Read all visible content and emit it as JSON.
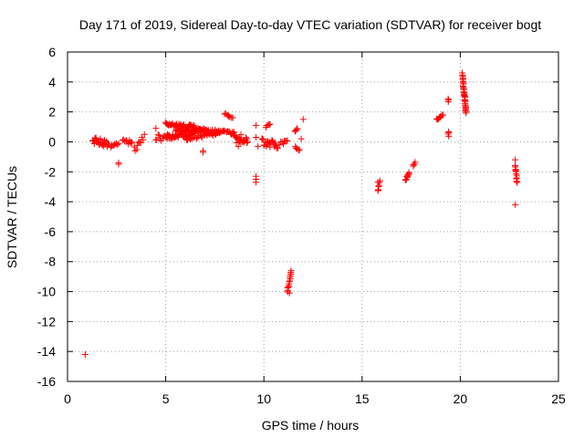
{
  "colors": {
    "points": "#ff0000",
    "frame": "#000000",
    "grid": "#a0a0a0"
  },
  "chart_data": {
    "type": "scatter",
    "title": "Day 171 of 2019, Sidereal Day-to-day VTEC variation (SDTVAR) for receiver bogt",
    "xlabel": "GPS time / hours",
    "ylabel": "SDTVAR / TECUs",
    "xlim": [
      0,
      25
    ],
    "ylim": [
      -16,
      6
    ],
    "xticks": [
      0,
      5,
      10,
      15,
      20,
      25
    ],
    "yticks": [
      -16,
      -14,
      -12,
      -10,
      -8,
      -6,
      -4,
      -2,
      0,
      2,
      4,
      6
    ],
    "grid": true,
    "marker": "plus",
    "series": [
      {
        "name": "SDTVAR",
        "segments": [
          {
            "x0": 1.3,
            "x1": 2.1,
            "y0": 0.1,
            "y1": -0.1,
            "n": 30,
            "jitter": 0.25
          },
          {
            "x0": 2.2,
            "x1": 2.6,
            "y0": -0.3,
            "y1": -0.1,
            "n": 8,
            "jitter": 0.15
          },
          {
            "x0": 2.8,
            "x1": 3.3,
            "y0": 0.1,
            "y1": -0.1,
            "n": 10,
            "jitter": 0.15
          },
          {
            "x0": 3.4,
            "x1": 3.9,
            "y0": -0.5,
            "y1": 0.3,
            "n": 10,
            "jitter": 0.2
          },
          {
            "x0": 4.5,
            "x1": 5.2,
            "y0": 0.2,
            "y1": 0.5,
            "n": 14,
            "jitter": 0.25
          },
          {
            "x0": 5.0,
            "x1": 6.5,
            "y0": 1.2,
            "y1": 1.0,
            "n": 40,
            "jitter": 0.12
          },
          {
            "x0": 5.0,
            "x1": 6.5,
            "y0": 0.3,
            "y1": 0.6,
            "n": 40,
            "jitter": 0.15
          },
          {
            "x0": 5.5,
            "x1": 7.0,
            "y0": 0.8,
            "y1": 0.7,
            "n": 30,
            "jitter": 0.12
          },
          {
            "x0": 6.5,
            "x1": 8.5,
            "y0": 0.8,
            "y1": 0.6,
            "n": 40,
            "jitter": 0.12
          },
          {
            "x0": 6.0,
            "x1": 7.8,
            "y0": 0.2,
            "y1": 0.6,
            "n": 30,
            "jitter": 0.12
          },
          {
            "x0": 8.5,
            "x1": 9.2,
            "y0": 0.5,
            "y1": 0.1,
            "n": 18,
            "jitter": 0.3
          },
          {
            "x0": 8.6,
            "x1": 9.0,
            "y0": -0.2,
            "y1": 0.0,
            "n": 6,
            "jitter": 0.15
          },
          {
            "x0": 9.9,
            "x1": 10.7,
            "y0": 0.0,
            "y1": -0.2,
            "n": 25,
            "jitter": 0.25
          },
          {
            "x0": 10.8,
            "x1": 11.2,
            "y0": -0.1,
            "y1": 0.0,
            "n": 8,
            "jitter": 0.15
          },
          {
            "x0": 11.2,
            "x1": 11.4,
            "y0": -10.0,
            "y1": -8.6,
            "n": 14,
            "jitter": 0.05
          },
          {
            "x0": 11.6,
            "x1": 11.8,
            "y0": -0.4,
            "y1": -0.6,
            "n": 6,
            "jitter": 0.1
          },
          {
            "x0": 11.6,
            "x1": 11.7,
            "y0": 0.7,
            "y1": 0.9,
            "n": 5,
            "jitter": 0.05
          },
          {
            "x0": 8.0,
            "x1": 8.4,
            "y0": 1.9,
            "y1": 1.6,
            "n": 8,
            "jitter": 0.05
          },
          {
            "x0": 10.1,
            "x1": 10.3,
            "y0": 1.0,
            "y1": 1.2,
            "n": 5,
            "jitter": 0.05
          },
          {
            "x0": 15.8,
            "x1": 15.9,
            "y0": -3.3,
            "y1": -2.6,
            "n": 6,
            "jitter": 0.05
          },
          {
            "x0": 17.2,
            "x1": 17.4,
            "y0": -2.6,
            "y1": -2.0,
            "n": 10,
            "jitter": 0.08
          },
          {
            "x0": 17.6,
            "x1": 17.7,
            "y0": -1.6,
            "y1": -1.4,
            "n": 4,
            "jitter": 0.05
          },
          {
            "x0": 18.8,
            "x1": 19.1,
            "y0": 1.5,
            "y1": 1.8,
            "n": 8,
            "jitter": 0.08
          },
          {
            "x0": 19.4,
            "x1": 19.4,
            "y0": 0.4,
            "y1": 0.7,
            "n": 4,
            "jitter": 0.03
          },
          {
            "x0": 19.4,
            "x1": 19.4,
            "y0": 2.7,
            "y1": 2.9,
            "n": 3,
            "jitter": 0.03
          },
          {
            "x0": 20.1,
            "x1": 20.3,
            "y0": 4.5,
            "y1": 2.0,
            "n": 36,
            "jitter": 0.12
          },
          {
            "x0": 22.8,
            "x1": 22.9,
            "y0": -1.6,
            "y1": -2.8,
            "n": 14,
            "jitter": 0.1
          }
        ],
        "points": [
          [
            0.9,
            -14.2
          ],
          [
            2.6,
            -1.5
          ],
          [
            2.6,
            -1.4
          ],
          [
            4.5,
            0.9
          ],
          [
            6.9,
            -0.6
          ],
          [
            6.9,
            -0.7
          ],
          [
            9.6,
            -2.3
          ],
          [
            9.6,
            -2.5
          ],
          [
            9.6,
            -2.7
          ],
          [
            9.6,
            1.1
          ],
          [
            9.6,
            0.3
          ],
          [
            9.7,
            -0.3
          ],
          [
            11.3,
            -10.1
          ],
          [
            11.9,
            0.2
          ],
          [
            12.0,
            1.5
          ],
          [
            15.8,
            -2.7
          ],
          [
            22.8,
            -4.2
          ],
          [
            22.8,
            -1.2
          ]
        ]
      }
    ]
  }
}
